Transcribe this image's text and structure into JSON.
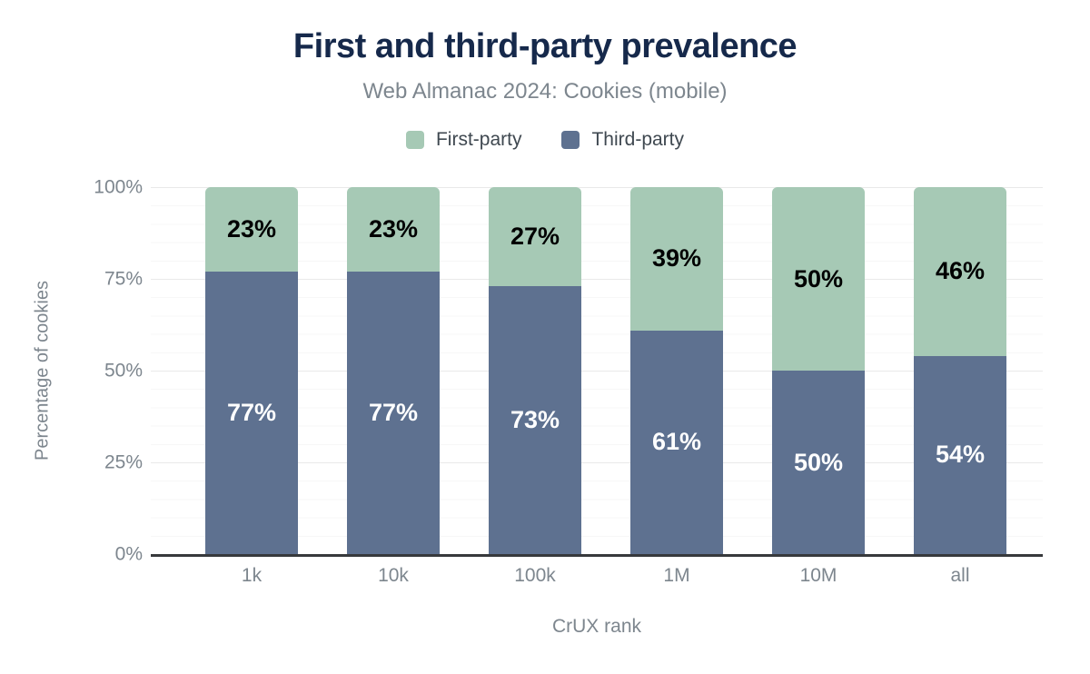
{
  "header": {
    "title": "First and third-party prevalence",
    "subtitle": "Web Almanac 2024: Cookies (mobile)"
  },
  "legend": {
    "items": [
      {
        "label": "First-party",
        "color": "#a6c9b5"
      },
      {
        "label": "Third-party",
        "color": "#5e7190"
      }
    ]
  },
  "chart_data": {
    "type": "bar",
    "stacked": true,
    "title": "First and third-party prevalence",
    "subtitle": "Web Almanac 2024: Cookies (mobile)",
    "categories": [
      "1k",
      "10k",
      "100k",
      "1M",
      "10M",
      "all"
    ],
    "series": [
      {
        "name": "First-party",
        "color": "#a6c9b5",
        "label_color": "#000000",
        "values": [
          23,
          23,
          27,
          39,
          50,
          46
        ]
      },
      {
        "name": "Third-party",
        "color": "#5e7190",
        "label_color": "#ffffff",
        "values": [
          77,
          77,
          73,
          61,
          50,
          54
        ]
      }
    ],
    "value_label_suffix": "%",
    "xlabel": "CrUX rank",
    "ylabel": "Percentage of cookies",
    "ylim": [
      0,
      100
    ],
    "yticks": [
      {
        "value": 0,
        "label": "0%"
      },
      {
        "value": 25,
        "label": "25%"
      },
      {
        "value": 50,
        "label": "50%"
      },
      {
        "value": 75,
        "label": "75%"
      },
      {
        "value": 100,
        "label": "100%"
      }
    ],
    "grid": {
      "major_interval_percent": 25,
      "minor_interval_percent": 5
    },
    "legend_position": "top"
  },
  "colors": {
    "title_text": "#16294b",
    "muted_text": "#7d868e",
    "legend_text": "#3f4850",
    "axis_line": "#37393c",
    "grid_major": "#e9e9e9",
    "grid_minor": "#f7f7f7"
  }
}
